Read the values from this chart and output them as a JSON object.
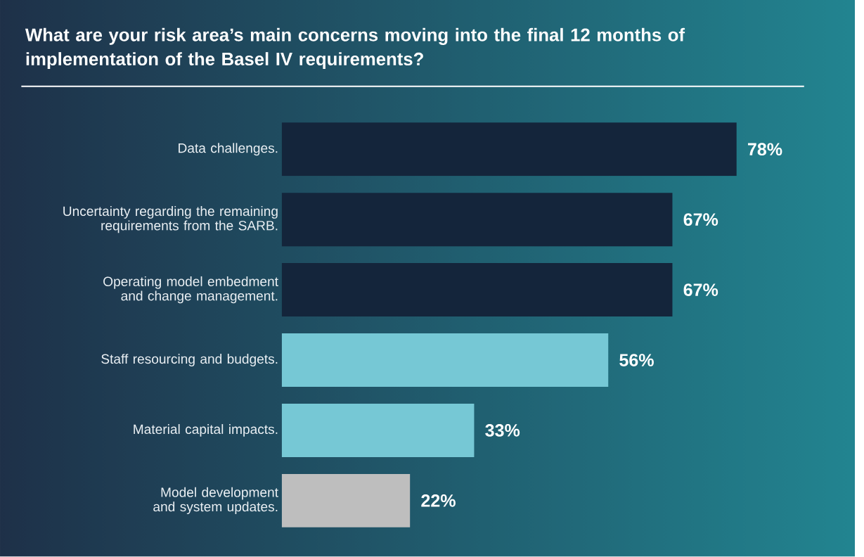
{
  "chart_data": {
    "type": "bar",
    "orientation": "horizontal",
    "title": "What are your risk area’s main concerns moving into the final 12 months of implementation of the Basel IV requirements?",
    "categories": [
      "Data challenges.",
      "Uncertainty regarding the remaining requirements from the SARB.",
      "Operating model embedment and change management.",
      "Staff resourcing and budgets.",
      "Material capital impacts.",
      "Model development and system updates."
    ],
    "values": [
      78,
      67,
      67,
      56,
      33,
      22
    ],
    "colors": [
      "#14253b",
      "#14253b",
      "#14253b",
      "#76c8d5",
      "#76c8d5",
      "#bebebe"
    ],
    "value_labels": [
      "78%",
      "67%",
      "67%",
      "56%",
      "33%",
      "22%"
    ]
  }
}
